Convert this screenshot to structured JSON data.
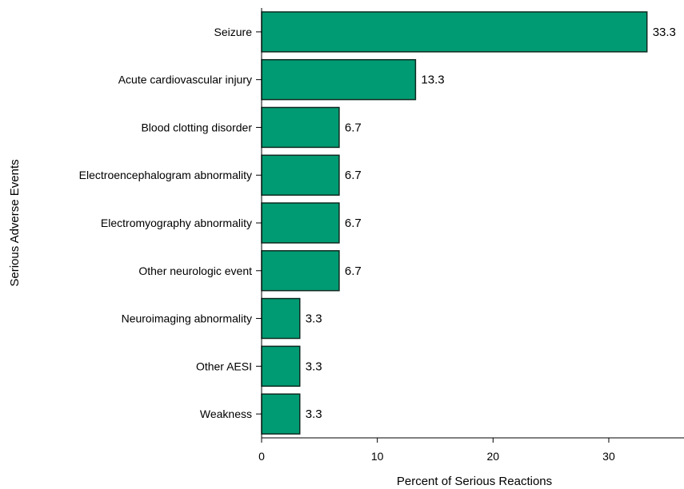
{
  "chart_data": {
    "type": "bar",
    "orientation": "horizontal",
    "categories": [
      "Seizure",
      "Acute cardiovascular injury",
      "Blood clotting disorder",
      "Electroencephalogram abnormality",
      "Electromyography abnormality",
      "Other neurologic event",
      "Neuroimaging abnormality",
      "Other AESI",
      "Weakness"
    ],
    "values": [
      33.3,
      13.3,
      6.7,
      6.7,
      6.7,
      6.7,
      3.3,
      3.3,
      3.3
    ],
    "data_labels": [
      "33.3",
      "13.3",
      "6.7",
      "6.7",
      "6.7",
      "6.7",
      "3.3",
      "3.3",
      "3.3"
    ],
    "title": "",
    "xlabel": "Percent of Serious Reactions",
    "ylabel": "Serious Adverse Events",
    "xlim": [
      0,
      36.5
    ],
    "xticks": [
      0,
      10,
      20,
      30
    ],
    "grid": false,
    "legend": "none",
    "bar_color": "#009b73",
    "bar_edge_color": "#0e2a1f"
  }
}
